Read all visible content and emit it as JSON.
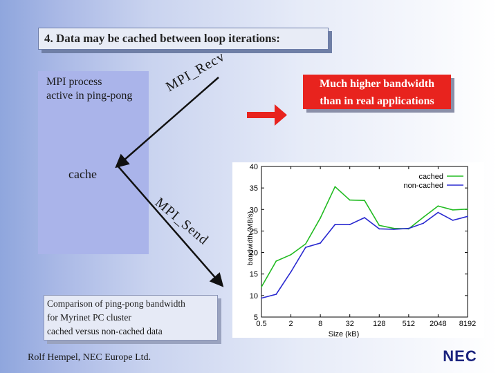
{
  "heading": "4.  Data may be cached between loop iterations:",
  "process_label_line1": "MPI process",
  "process_label_line2": "active in ping-pong",
  "recv_label": "MPI_Recv",
  "send_label": "MPI_Send",
  "cache_label": "cache",
  "note_line1": "Much higher bandwidth",
  "note_line2": "than in real applications",
  "caption_line1": "Comparison of ping-pong bandwidth",
  "caption_line2": "for Myrinet PC cluster",
  "caption_line3": "cached versus non-cached data",
  "footer": "Rolf Hempel, NEC Europe Ltd.",
  "logo": "NEC",
  "colors": {
    "red_accent": "#e8231e",
    "process_box": "#aab4ea",
    "cached": "#22bb22",
    "non_cached": "#2a2ad0"
  },
  "chart_data": {
    "type": "line",
    "xlabel": "Size (kB)",
    "ylabel": "bandwidth (MB/s)",
    "x_tick_labels": [
      "0.5",
      "2",
      "8",
      "32",
      "128",
      "512",
      "2048",
      "8192"
    ],
    "y_tick_labels": [
      "5",
      "10",
      "15",
      "20",
      "25",
      "30",
      "35",
      "40"
    ],
    "ylim": [
      5,
      40
    ],
    "x_log2_range": [
      -1,
      13
    ],
    "legend_position": "top-right",
    "grid": false,
    "series": [
      {
        "name": "cached",
        "x": [
          0.5,
          1,
          2,
          4,
          8,
          16,
          32,
          64,
          128,
          256,
          512,
          1024,
          2048,
          4096,
          8192
        ],
        "values": [
          12,
          18,
          19.5,
          22,
          28,
          35.3,
          32.2,
          32.1,
          26.3,
          25.6,
          25.5,
          28.2,
          30.8,
          29.9,
          30.1
        ]
      },
      {
        "name": "non-cached",
        "x": [
          0.5,
          1,
          2,
          4,
          8,
          16,
          32,
          64,
          128,
          256,
          512,
          1024,
          2048,
          4096,
          8192
        ],
        "values": [
          9.4,
          10.3,
          15.5,
          21.2,
          22.2,
          26.5,
          26.5,
          28.1,
          25.5,
          25.4,
          25.6,
          26.8,
          29.3,
          27.5,
          28.4
        ]
      }
    ]
  }
}
